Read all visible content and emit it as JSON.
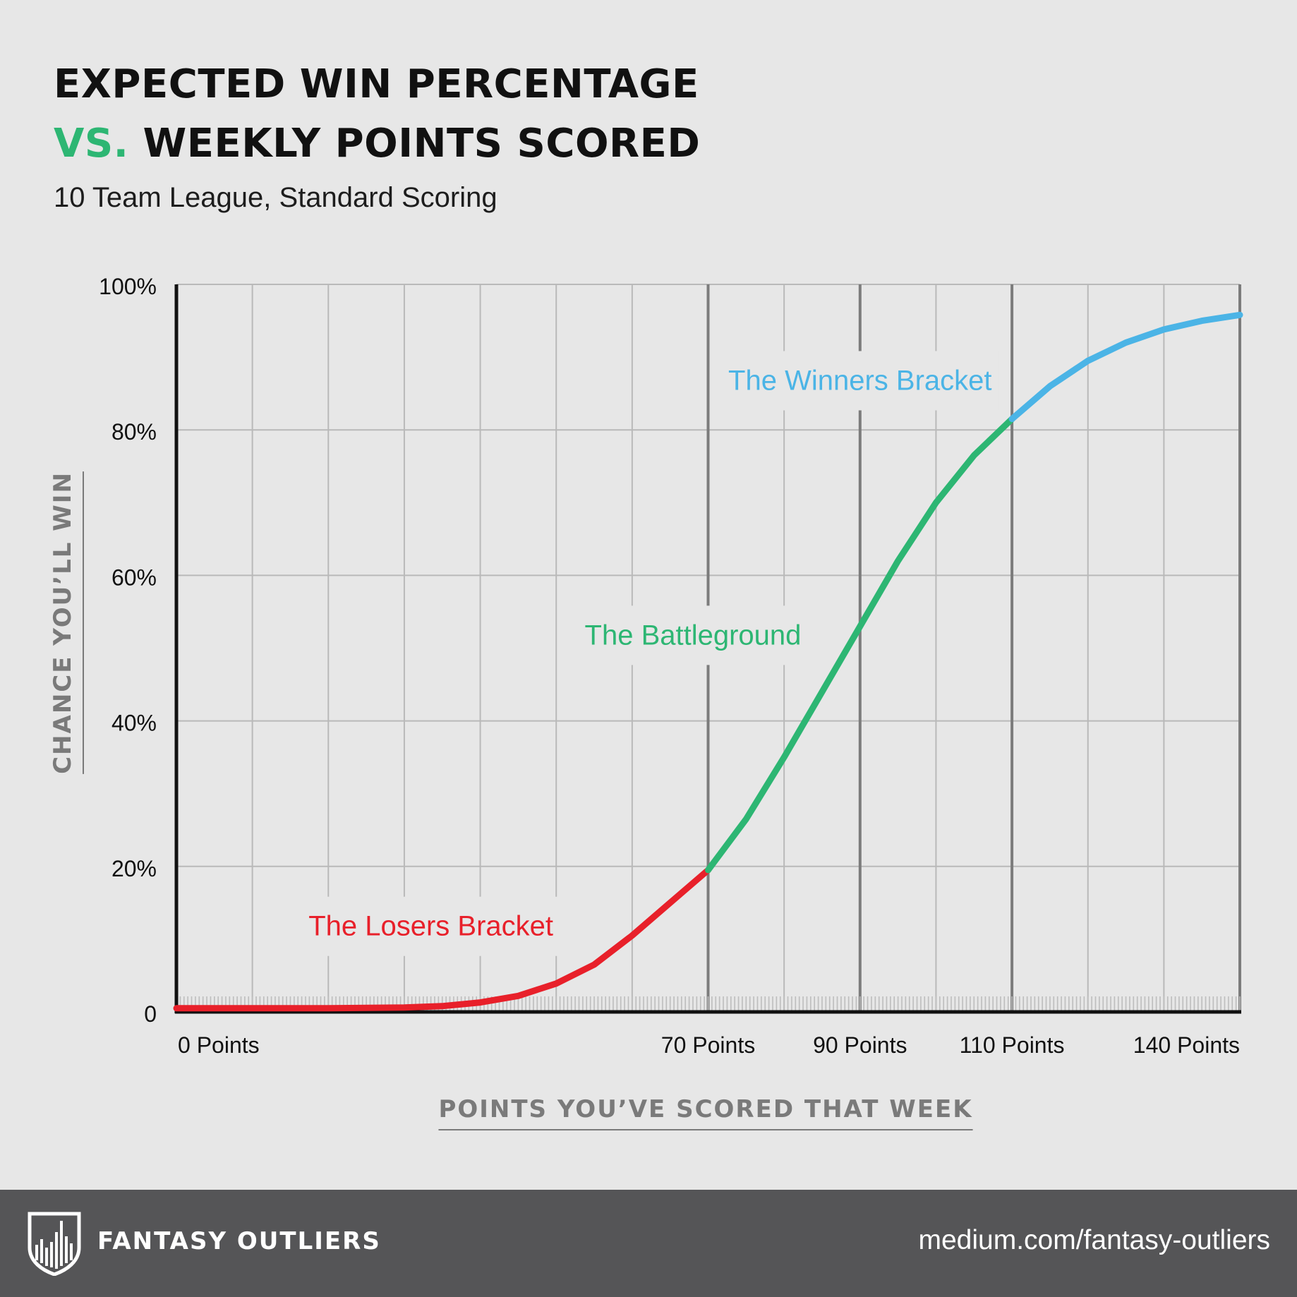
{
  "header": {
    "title_line1": "EXPECTED WIN PERCENTAGE",
    "title_vs": "VS.",
    "title_line2": "WEEKLY POINTS SCORED",
    "subtitle": "10 Team League, Standard Scoring"
  },
  "footer": {
    "brand": "FANTASY OUTLIERS",
    "url": "medium.com/fantasy-outliers"
  },
  "colors": {
    "losers": "#e8202a",
    "battleground": "#2db673",
    "winners": "#4bb4e6",
    "title_accent": "#2db673"
  },
  "chart_data": {
    "type": "line",
    "title": "EXPECTED WIN PERCENTAGE VS. WEEKLY POINTS SCORED",
    "subtitle": "10 Team League, Standard Scoring",
    "xlabel": "POINTS YOU’VE SCORED THAT WEEK",
    "ylabel": "CHANCE YOU’LL WIN",
    "xlim": [
      0,
      140
    ],
    "ylim": [
      0,
      100
    ],
    "x_tick_labels": [
      {
        "x": 0,
        "label": "0 Points"
      },
      {
        "x": 70,
        "label": "70 Points"
      },
      {
        "x": 90,
        "label": "90 Points"
      },
      {
        "x": 110,
        "label": "110 Points"
      },
      {
        "x": 140,
        "label": "140 Points"
      }
    ],
    "y_tick_labels": [
      {
        "y": 0,
        "label": "0"
      },
      {
        "y": 20,
        "label": "20%"
      },
      {
        "y": 40,
        "label": "40%"
      },
      {
        "y": 60,
        "label": "60%"
      },
      {
        "y": 80,
        "label": "80%"
      },
      {
        "y": 100,
        "label": "100%"
      }
    ],
    "grid": true,
    "x_gridlines": [
      0,
      10,
      20,
      30,
      40,
      50,
      60,
      70,
      80,
      90,
      100,
      110,
      120,
      130,
      140
    ],
    "emphasized_x_gridlines": [
      70,
      90,
      110,
      140
    ],
    "series": [
      {
        "name": "The Losers Bracket",
        "color": "#e8202a",
        "points": [
          [
            0,
            0.5
          ],
          [
            10,
            0.5
          ],
          [
            20,
            0.5
          ],
          [
            30,
            0.6
          ],
          [
            35,
            0.8
          ],
          [
            40,
            1.3
          ],
          [
            45,
            2.2
          ],
          [
            50,
            3.9
          ],
          [
            55,
            6.5
          ],
          [
            60,
            10.5
          ],
          [
            65,
            15
          ],
          [
            70,
            19.5
          ]
        ]
      },
      {
        "name": "The Battleground",
        "color": "#2db673",
        "points": [
          [
            70,
            19.5
          ],
          [
            75,
            26.5
          ],
          [
            80,
            35
          ],
          [
            85,
            44
          ],
          [
            90,
            53
          ],
          [
            95,
            62
          ],
          [
            100,
            70
          ],
          [
            105,
            76.5
          ],
          [
            110,
            81.5
          ]
        ]
      },
      {
        "name": "The Winners Bracket",
        "color": "#4bb4e6",
        "points": [
          [
            110,
            81.5
          ],
          [
            115,
            86
          ],
          [
            120,
            89.5
          ],
          [
            125,
            92
          ],
          [
            130,
            93.8
          ],
          [
            135,
            95
          ],
          [
            140,
            95.8
          ]
        ]
      }
    ]
  }
}
